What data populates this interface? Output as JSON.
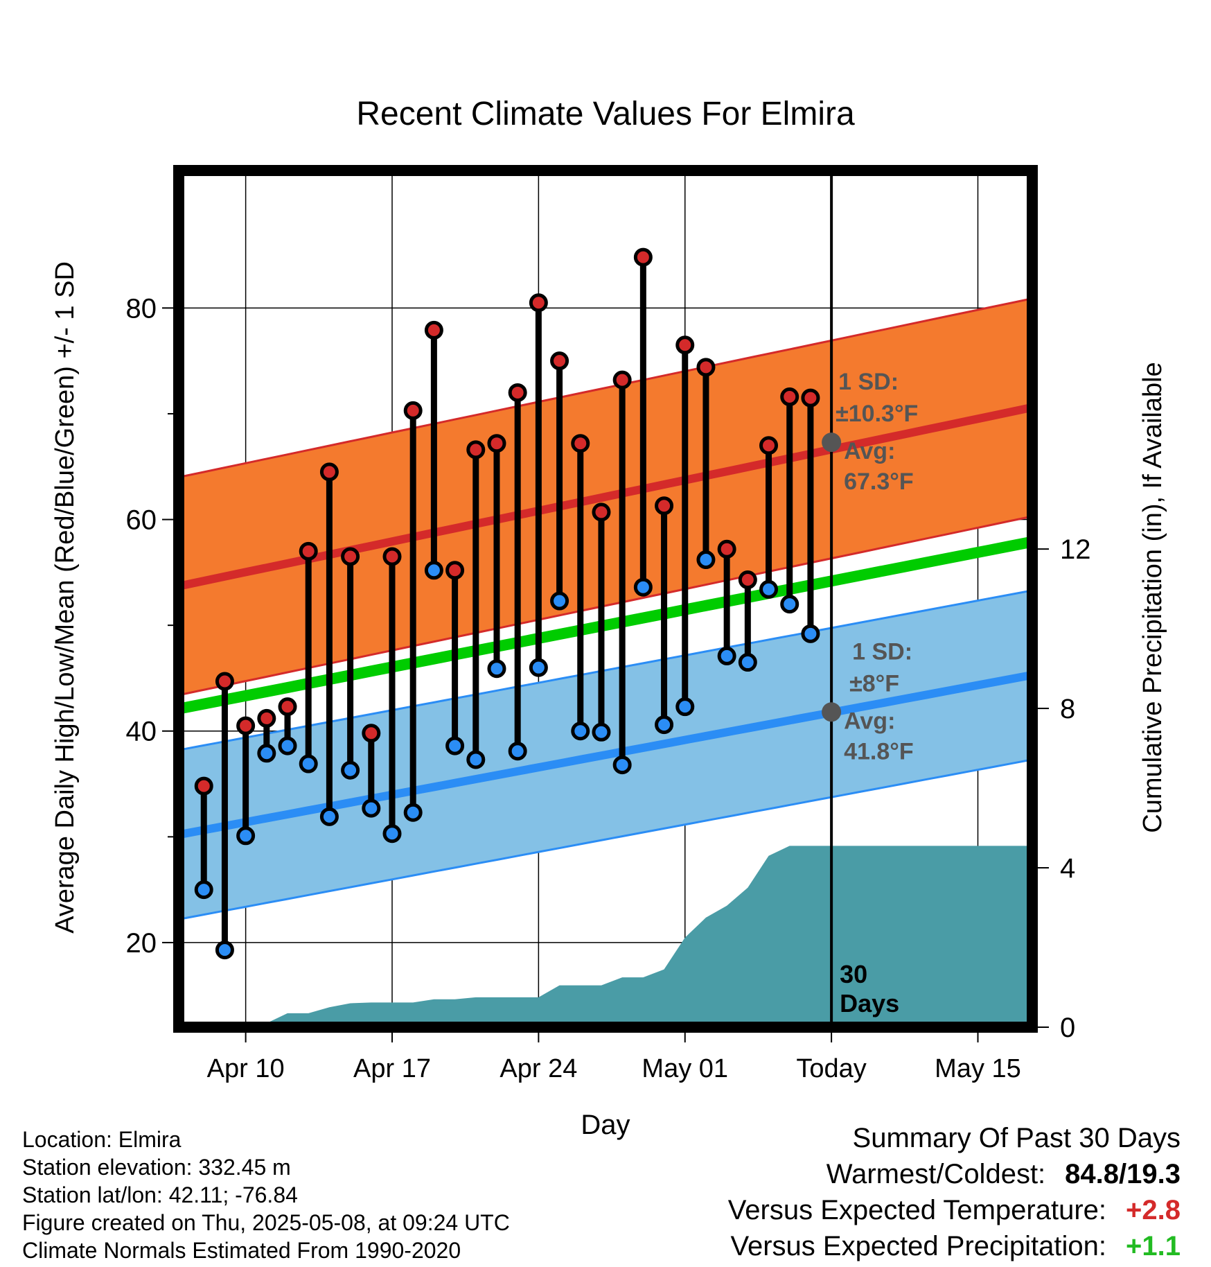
{
  "chart_data": {
    "type": "line",
    "title": "Recent Climate Values For Elmira",
    "xlabel": "Day",
    "ylabel_left": "Average Daily High/Low/Mean (Red/Blue/Green) +/- 1 SD",
    "ylabel_right": "Cumulative Precipitation (in), If Available",
    "x_tick_labels": [
      "Apr 10",
      "Apr 17",
      "Apr 24",
      "May 01",
      "Today",
      "May 15"
    ],
    "x_tick_days": [
      10,
      17,
      24,
      31,
      38,
      45
    ],
    "xlim_days": [
      6.8,
      47.6
    ],
    "today_day": 38,
    "y_left_ticks": [
      20,
      40,
      60,
      80
    ],
    "y_left_lim": [
      12,
      93
    ],
    "y_right_ticks": [
      0,
      4,
      8,
      12
    ],
    "y_right_lim": [
      0,
      21.5
    ],
    "grid": true,
    "observations": {
      "days": [
        8,
        9,
        10,
        11,
        12,
        13,
        14,
        15,
        16,
        17,
        18,
        19,
        20,
        21,
        22,
        23,
        24,
        25,
        26,
        27,
        28,
        29,
        30,
        31,
        32,
        33,
        34,
        35,
        36,
        37
      ],
      "high": [
        34.8,
        44.7,
        40.5,
        41.2,
        42.3,
        57,
        64.5,
        56.5,
        39.8,
        56.5,
        70.3,
        77.9,
        55.2,
        66.6,
        67.2,
        72,
        80.5,
        75,
        67.2,
        60.7,
        73.2,
        84.8,
        61.3,
        76.5,
        74.4,
        57.2,
        54.3,
        67,
        71.6,
        71.5
      ],
      "low": [
        25,
        19.3,
        30.1,
        37.9,
        38.6,
        36.9,
        31.9,
        36.3,
        32.7,
        30.3,
        32.3,
        55.2,
        38.6,
        37.3,
        45.9,
        38.1,
        46,
        52.3,
        40,
        39.9,
        36.8,
        53.6,
        40.6,
        42.3,
        56.2,
        47.1,
        46.5,
        53.4,
        52,
        49.2
      ]
    },
    "normals": {
      "high_mean": [
        53.7,
        70.6
      ],
      "high_sd": 10.3,
      "low_mean": [
        30.2,
        45.3
      ],
      "low_sd": 8,
      "mean": [
        42.1,
        57.9
      ]
    },
    "precip_cumulative": {
      "days": [
        7,
        8,
        9,
        10,
        11,
        12,
        13,
        14,
        15,
        16,
        17,
        18,
        19,
        20,
        21,
        22,
        23,
        24,
        25,
        26,
        27,
        28,
        29,
        30,
        31,
        32,
        33,
        34,
        35,
        36,
        37,
        38,
        47.6
      ],
      "values": [
        0,
        0,
        0,
        0.05,
        0.1,
        0.35,
        0.35,
        0.5,
        0.6,
        0.62,
        0.62,
        0.62,
        0.7,
        0.7,
        0.75,
        0.75,
        0.75,
        0.75,
        1.05,
        1.05,
        1.05,
        1.25,
        1.25,
        1.45,
        2.25,
        2.75,
        3.05,
        3.5,
        4.3,
        4.55,
        4.55,
        4.55,
        4.55
      ]
    },
    "annotations": {
      "high_sd_label": "1 SD:",
      "high_sd_value": "±10.3°F",
      "high_avg_label": "Avg:",
      "high_avg_value": "67.3°F",
      "high_avg_point": 67.3,
      "low_sd_label": "1 SD:",
      "low_sd_value": "±8°F",
      "low_avg_label": "Avg:",
      "low_avg_value": "41.8°F",
      "low_avg_point": 41.8,
      "days_label_1": "30",
      "days_label_2": "Days"
    },
    "colors": {
      "high_band": "#f47a2e",
      "high_line": "#d42a2a",
      "low_band": "#84c1e6",
      "low_line": "#2b8df5",
      "mean_line": "#00cc00",
      "precip": "#4a9ca6",
      "high_dot": "#d42a2a",
      "low_dot": "#2b8df5",
      "annot": "#555555"
    }
  },
  "info": {
    "location": "Location: Elmira",
    "elevation": "Station elevation: 332.45 m",
    "latlon": "Station lat/lon: 42.11; -76.84",
    "created": "Figure created on Thu, 2025-05-08, at 09:24 UTC",
    "normals": "Climate Normals Estimated From 1990-2020"
  },
  "summary": {
    "heading": "Summary Of Past 30 Days",
    "warm_cold_label": "Warmest/Coldest:",
    "warm_cold_value": "84.8/19.3",
    "temp_label": "Versus Expected Temperature:",
    "temp_value": "+2.8",
    "temp_color": "#d42a2a",
    "precip_label": "Versus Expected Precipitation:",
    "precip_value": "+1.1",
    "precip_color": "#22bb22"
  }
}
